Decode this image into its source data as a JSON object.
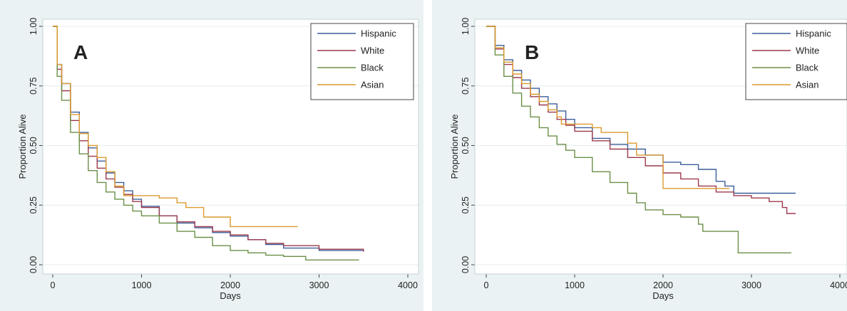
{
  "chart_data": [
    {
      "panel_label": "A",
      "type": "line",
      "xlabel": "Days",
      "ylabel": "Proportion Alive",
      "xlim": [
        0,
        4000
      ],
      "ylim": [
        0,
        1
      ],
      "x_ticks": [
        "0",
        "1000",
        "2000",
        "3000",
        "4000"
      ],
      "y_ticks": [
        "0.00",
        "0.25",
        "0.50",
        "0.75",
        "1.00"
      ],
      "grid": true,
      "legend_position": "top-right",
      "series": [
        {
          "name": "Hispanic",
          "color": "#3c5f9a",
          "points": [
            [
              0,
              1.0
            ],
            [
              50,
              0.84
            ],
            [
              100,
              0.76
            ],
            [
              200,
              0.64
            ],
            [
              300,
              0.555
            ],
            [
              400,
              0.49
            ],
            [
              500,
              0.435
            ],
            [
              600,
              0.385
            ],
            [
              700,
              0.345
            ],
            [
              800,
              0.31
            ],
            [
              900,
              0.275
            ],
            [
              1000,
              0.245
            ],
            [
              1200,
              0.205
            ],
            [
              1400,
              0.175
            ],
            [
              1600,
              0.155
            ],
            [
              1800,
              0.135
            ],
            [
              2000,
              0.12
            ],
            [
              2200,
              0.105
            ],
            [
              2400,
              0.085
            ],
            [
              2600,
              0.07
            ],
            [
              3000,
              0.06
            ],
            [
              3500,
              0.06
            ]
          ]
        },
        {
          "name": "White",
          "color": "#9b3a4c",
          "points": [
            [
              0,
              1.0
            ],
            [
              50,
              0.82
            ],
            [
              100,
              0.73
            ],
            [
              200,
              0.605
            ],
            [
              300,
              0.52
            ],
            [
              400,
              0.455
            ],
            [
              500,
              0.405
            ],
            [
              600,
              0.36
            ],
            [
              700,
              0.325
            ],
            [
              800,
              0.295
            ],
            [
              900,
              0.265
            ],
            [
              1000,
              0.24
            ],
            [
              1200,
              0.205
            ],
            [
              1400,
              0.18
            ],
            [
              1600,
              0.16
            ],
            [
              1800,
              0.14
            ],
            [
              2000,
              0.125
            ],
            [
              2200,
              0.105
            ],
            [
              2400,
              0.09
            ],
            [
              2600,
              0.08
            ],
            [
              3000,
              0.065
            ],
            [
              3500,
              0.055
            ]
          ]
        },
        {
          "name": "Black",
          "color": "#6b8f47",
          "points": [
            [
              0,
              1.0
            ],
            [
              50,
              0.79
            ],
            [
              100,
              0.69
            ],
            [
              200,
              0.555
            ],
            [
              300,
              0.465
            ],
            [
              400,
              0.395
            ],
            [
              500,
              0.345
            ],
            [
              600,
              0.305
            ],
            [
              700,
              0.275
            ],
            [
              800,
              0.25
            ],
            [
              900,
              0.225
            ],
            [
              1000,
              0.205
            ],
            [
              1200,
              0.175
            ],
            [
              1400,
              0.14
            ],
            [
              1600,
              0.115
            ],
            [
              1800,
              0.08
            ],
            [
              2000,
              0.06
            ],
            [
              2200,
              0.05
            ],
            [
              2400,
              0.04
            ],
            [
              2600,
              0.035
            ],
            [
              2850,
              0.02
            ],
            [
              3450,
              0.02
            ]
          ]
        },
        {
          "name": "Asian",
          "color": "#dc9a2e",
          "points": [
            [
              0,
              1.0
            ],
            [
              50,
              0.84
            ],
            [
              100,
              0.76
            ],
            [
              200,
              0.63
            ],
            [
              300,
              0.55
            ],
            [
              400,
              0.5
            ],
            [
              500,
              0.45
            ],
            [
              600,
              0.39
            ],
            [
              700,
              0.33
            ],
            [
              800,
              0.29
            ],
            [
              900,
              0.29
            ],
            [
              1000,
              0.29
            ],
            [
              1200,
              0.28
            ],
            [
              1400,
              0.26
            ],
            [
              1500,
              0.24
            ],
            [
              1700,
              0.2
            ],
            [
              2000,
              0.16
            ],
            [
              2760,
              0.16
            ]
          ]
        }
      ]
    },
    {
      "panel_label": "B",
      "type": "line",
      "xlabel": "Days",
      "ylabel": "Proportion Alive",
      "xlim": [
        0,
        4000
      ],
      "ylim": [
        0,
        1
      ],
      "x_ticks": [
        "0",
        "1000",
        "2000",
        "3000",
        "4000"
      ],
      "y_ticks": [
        "0.00",
        "0.25",
        "0.50",
        "0.75",
        "1.00"
      ],
      "grid": true,
      "legend_position": "top-right",
      "series": [
        {
          "name": "Hispanic",
          "color": "#3c5f9a",
          "points": [
            [
              0,
              1.0
            ],
            [
              100,
              0.92
            ],
            [
              200,
              0.86
            ],
            [
              300,
              0.815
            ],
            [
              400,
              0.775
            ],
            [
              500,
              0.74
            ],
            [
              600,
              0.705
            ],
            [
              700,
              0.675
            ],
            [
              800,
              0.645
            ],
            [
              900,
              0.61
            ],
            [
              1000,
              0.575
            ],
            [
              1200,
              0.53
            ],
            [
              1400,
              0.505
            ],
            [
              1600,
              0.485
            ],
            [
              1800,
              0.46
            ],
            [
              2000,
              0.43
            ],
            [
              2200,
              0.42
            ],
            [
              2400,
              0.4
            ],
            [
              2600,
              0.35
            ],
            [
              2700,
              0.33
            ],
            [
              2800,
              0.3
            ],
            [
              3500,
              0.3
            ]
          ]
        },
        {
          "name": "White",
          "color": "#9b3a4c",
          "points": [
            [
              0,
              1.0
            ],
            [
              100,
              0.905
            ],
            [
              200,
              0.84
            ],
            [
              300,
              0.785
            ],
            [
              400,
              0.74
            ],
            [
              500,
              0.705
            ],
            [
              600,
              0.67
            ],
            [
              700,
              0.64
            ],
            [
              800,
              0.61
            ],
            [
              900,
              0.585
            ],
            [
              1000,
              0.56
            ],
            [
              1200,
              0.52
            ],
            [
              1400,
              0.485
            ],
            [
              1600,
              0.45
            ],
            [
              1800,
              0.415
            ],
            [
              2000,
              0.385
            ],
            [
              2200,
              0.36
            ],
            [
              2400,
              0.33
            ],
            [
              2600,
              0.305
            ],
            [
              2800,
              0.29
            ],
            [
              3000,
              0.28
            ],
            [
              3200,
              0.265
            ],
            [
              3350,
              0.24
            ],
            [
              3400,
              0.215
            ],
            [
              3500,
              0.215
            ]
          ]
        },
        {
          "name": "Black",
          "color": "#6b8f47",
          "points": [
            [
              0,
              1.0
            ],
            [
              100,
              0.88
            ],
            [
              200,
              0.79
            ],
            [
              300,
              0.72
            ],
            [
              400,
              0.665
            ],
            [
              500,
              0.62
            ],
            [
              600,
              0.575
            ],
            [
              700,
              0.54
            ],
            [
              800,
              0.505
            ],
            [
              900,
              0.48
            ],
            [
              1000,
              0.45
            ],
            [
              1200,
              0.39
            ],
            [
              1400,
              0.345
            ],
            [
              1600,
              0.3
            ],
            [
              1700,
              0.26
            ],
            [
              1800,
              0.23
            ],
            [
              2000,
              0.21
            ],
            [
              2200,
              0.2
            ],
            [
              2400,
              0.17
            ],
            [
              2450,
              0.14
            ],
            [
              2850,
              0.14
            ],
            [
              2850,
              0.05
            ],
            [
              3450,
              0.05
            ]
          ]
        },
        {
          "name": "Asian",
          "color": "#dc9a2e",
          "points": [
            [
              0,
              1.0
            ],
            [
              100,
              0.91
            ],
            [
              200,
              0.85
            ],
            [
              300,
              0.8
            ],
            [
              400,
              0.76
            ],
            [
              500,
              0.715
            ],
            [
              600,
              0.685
            ],
            [
              700,
              0.65
            ],
            [
              800,
              0.62
            ],
            [
              850,
              0.59
            ],
            [
              1000,
              0.59
            ],
            [
              1100,
              0.59
            ],
            [
              1200,
              0.575
            ],
            [
              1300,
              0.555
            ],
            [
              1500,
              0.555
            ],
            [
              1600,
              0.51
            ],
            [
              1700,
              0.46
            ],
            [
              1950,
              0.46
            ],
            [
              2000,
              0.32
            ],
            [
              2750,
              0.32
            ]
          ]
        }
      ]
    }
  ]
}
